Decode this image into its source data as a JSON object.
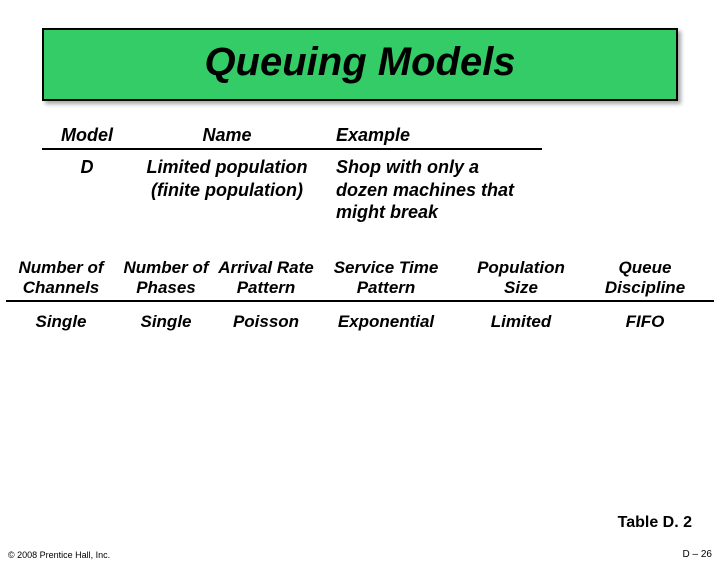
{
  "title": "Queuing Models",
  "upper": {
    "headers": {
      "model": "Model",
      "name": "Name",
      "example": "Example"
    },
    "row": {
      "model": "D",
      "name": "Limited population (finite population)",
      "example": "Shop with only a dozen machines that might break"
    }
  },
  "lower": {
    "headers": {
      "channels": "Number of Channels",
      "phases": "Number of Phases",
      "arrival": "Arrival Rate Pattern",
      "service": "Service Time Pattern",
      "population": "Population Size",
      "discipline": "Queue Discipline"
    },
    "row": {
      "channels": "Single",
      "phases": "Single",
      "arrival": "Poisson",
      "service": "Exponential",
      "population": "Limited",
      "discipline": "FIFO"
    }
  },
  "tableLabel": "Table D. 2",
  "copyright": "© 2008 Prentice Hall, Inc.",
  "pageNumber": "D – 26",
  "colors": {
    "titleBg": "#33cc66",
    "border": "#000000",
    "text": "#000000",
    "background": "#ffffff"
  }
}
